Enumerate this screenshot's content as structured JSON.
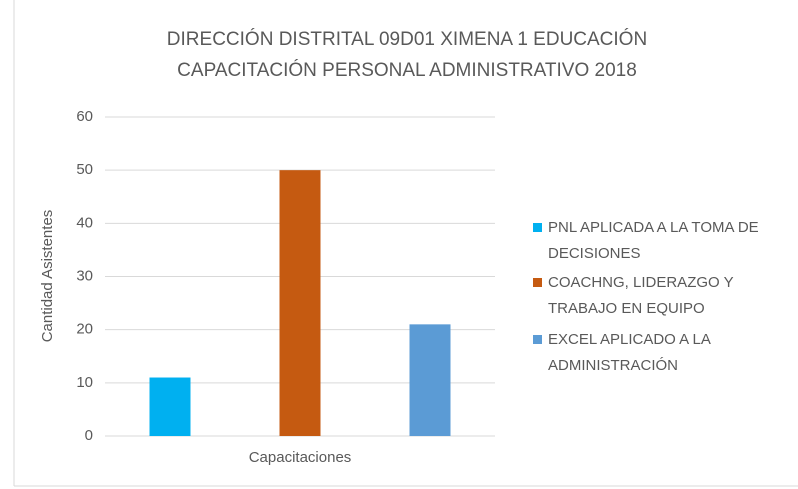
{
  "chart_data": {
    "type": "bar",
    "title": [
      "DIRECCIÓN DISTRITAL 09D01 XIMENA 1 EDUCACIÓN",
      "CAPACITACIÓN PERSONAL ADMINISTRATIVO 2018"
    ],
    "y_label": "Cantidad Asistentes",
    "categories": [
      "Capacitaciones"
    ],
    "series": [
      {
        "name": "PNL APLICADA A LA TOMA DE DECISIONES",
        "color": "#00b0f0",
        "values": [
          11
        ]
      },
      {
        "name": "COACHNG, LIDERAZGO Y TRABAJO EN EQUIPO",
        "color": "#c55a11",
        "values": [
          50
        ]
      },
      {
        "name": "EXCEL APLICADO A LA ADMINISTRACIÓN",
        "color": "#5b9bd5",
        "values": [
          21
        ]
      }
    ],
    "ylim": [
      0,
      60
    ],
    "yticks": [
      0,
      10,
      20,
      30,
      40,
      50,
      60
    ],
    "grid": true,
    "legend": "right"
  }
}
